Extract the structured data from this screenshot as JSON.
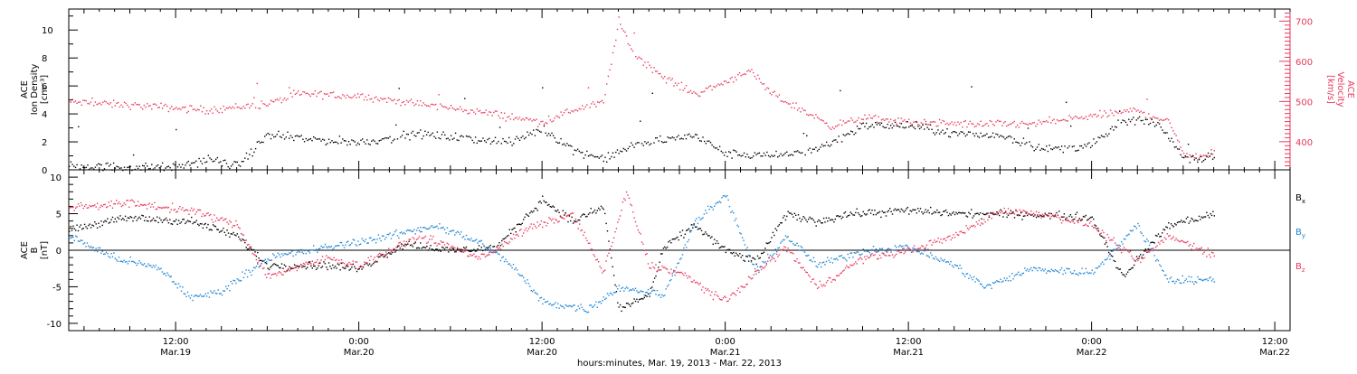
{
  "colors": {
    "black": "#000000",
    "red": "#e8385c",
    "blue": "#1f86d6"
  },
  "xaxis": {
    "title": "hours:minutes, Mar. 19, 2013 - Mar. 22, 2013",
    "range": [
      "2013-03-19T05:00",
      "2013-03-22T13:00"
    ],
    "data_end": "2013-03-22T08:00",
    "ticks": [
      {
        "time": "12:00",
        "date": "Mar.19",
        "at": "2013-03-19T12:00"
      },
      {
        "time": "0:00",
        "date": "Mar.20",
        "at": "2013-03-20T00:00"
      },
      {
        "time": "12:00",
        "date": "Mar.20",
        "at": "2013-03-20T12:00"
      },
      {
        "time": "0:00",
        "date": "Mar.21",
        "at": "2013-03-21T00:00"
      },
      {
        "time": "12:00",
        "date": "Mar.21",
        "at": "2013-03-21T12:00"
      },
      {
        "time": "0:00",
        "date": "Mar.22",
        "at": "2013-03-22T00:00"
      },
      {
        "time": "12:00",
        "date": "Mar.22",
        "at": "2013-03-22T12:00"
      }
    ]
  },
  "chart_data": [
    {
      "type": "scatter",
      "panel": "top",
      "ylabel_left": [
        "ACE",
        "Ion Density",
        "[cm⁻³]"
      ],
      "ylim_left": [
        0,
        11.5
      ],
      "yticks_left": [
        "0",
        "2",
        "4",
        "6",
        "8",
        "10"
      ],
      "ylabel_right": [
        "ACE",
        "Velocity",
        "[km/s]"
      ],
      "ylim_right": [
        330,
        730
      ],
      "yticks_right": [
        "400",
        "500",
        "600",
        "700"
      ],
      "series": [
        {
          "color": "#000000",
          "axis": "left",
          "points": [
            [
              "2013-03-19T05:00",
              0.3
            ],
            [
              "2013-03-19T12:00",
              0.2
            ],
            [
              "2013-03-19T14:00",
              0.8
            ],
            [
              "2013-03-19T16:00",
              0.3
            ],
            [
              "2013-03-19T18:00",
              2.5
            ],
            [
              "2013-03-19T21:00",
              2.2
            ],
            [
              "2013-03-20T00:00",
              2.0
            ],
            [
              "2013-03-20T04:00",
              2.6
            ],
            [
              "2013-03-20T07:00",
              2.3
            ],
            [
              "2013-03-20T10:00",
              2.0
            ],
            [
              "2013-03-20T12:00",
              3.0
            ],
            [
              "2013-03-20T14:00",
              1.5
            ],
            [
              "2013-03-20T16:00",
              0.8
            ],
            [
              "2013-03-20T18:00",
              1.8
            ],
            [
              "2013-03-20T20:00",
              2.2
            ],
            [
              "2013-03-20T22:00",
              2.5
            ],
            [
              "2013-03-21T00:00",
              1.2
            ],
            [
              "2013-03-21T03:00",
              1.0
            ],
            [
              "2013-03-21T06:00",
              1.5
            ],
            [
              "2013-03-21T09:00",
              3.2
            ],
            [
              "2013-03-21T12:00",
              3.2
            ],
            [
              "2013-03-21T15:00",
              2.6
            ],
            [
              "2013-03-21T18:00",
              2.5
            ],
            [
              "2013-03-21T21:00",
              1.5
            ],
            [
              "2013-03-22T00:00",
              1.8
            ],
            [
              "2013-03-22T02:00",
              3.5
            ],
            [
              "2013-03-22T04:00",
              3.5
            ],
            [
              "2013-03-22T05:00",
              2.5
            ],
            [
              "2013-03-22T06:00",
              0.9
            ],
            [
              "2013-03-22T08:00",
              0.9
            ]
          ]
        },
        {
          "color": "#e8385c",
          "axis": "right",
          "points": [
            [
              "2013-03-19T05:00",
              500
            ],
            [
              "2013-03-19T10:00",
              490
            ],
            [
              "2013-03-19T14:00",
              480
            ],
            [
              "2013-03-19T18:00",
              495
            ],
            [
              "2013-03-19T20:00",
              520
            ],
            [
              "2013-03-20T00:00",
              515
            ],
            [
              "2013-03-20T04:00",
              495
            ],
            [
              "2013-03-20T08:00",
              475
            ],
            [
              "2013-03-20T12:00",
              450
            ],
            [
              "2013-03-20T14:00",
              480
            ],
            [
              "2013-03-20T16:00",
              500
            ],
            [
              "2013-03-20T17:00",
              700
            ],
            [
              "2013-03-20T18:00",
              620
            ],
            [
              "2013-03-20T20:00",
              560
            ],
            [
              "2013-03-20T22:00",
              520
            ],
            [
              "2013-03-21T00:00",
              550
            ],
            [
              "2013-03-21T01:30",
              580
            ],
            [
              "2013-03-21T03:00",
              520
            ],
            [
              "2013-03-21T05:00",
              480
            ],
            [
              "2013-03-21T07:00",
              440
            ],
            [
              "2013-03-21T09:00",
              460
            ],
            [
              "2013-03-21T12:00",
              450
            ],
            [
              "2013-03-21T16:00",
              445
            ],
            [
              "2013-03-21T20:00",
              445
            ],
            [
              "2013-03-22T00:00",
              465
            ],
            [
              "2013-03-22T03:00",
              480
            ],
            [
              "2013-03-22T05:00",
              450
            ],
            [
              "2013-03-22T06:00",
              375
            ],
            [
              "2013-03-22T07:00",
              360
            ],
            [
              "2013-03-22T08:00",
              375
            ]
          ]
        }
      ]
    },
    {
      "type": "scatter",
      "panel": "bottom",
      "ylabel_left": [
        "ACE",
        "B",
        "[nT]"
      ],
      "ylim_left": [
        -11,
        11
      ],
      "yticks_left": [
        "-10",
        "-5",
        "0",
        "5",
        "10"
      ],
      "zero_line": true,
      "series": [
        {
          "name": "Bx",
          "color": "#000000",
          "points": [
            [
              "2013-03-19T05:00",
              3.0
            ],
            [
              "2013-03-19T09:00",
              4.5
            ],
            [
              "2013-03-19T13:00",
              4.0
            ],
            [
              "2013-03-19T16:00",
              2.0
            ],
            [
              "2013-03-19T18:00",
              -2.0
            ],
            [
              "2013-03-19T22:00",
              -2.0
            ],
            [
              "2013-03-20T00:00",
              -2.5
            ],
            [
              "2013-03-20T03:00",
              1.0
            ],
            [
              "2013-03-20T06:00",
              0.0
            ],
            [
              "2013-03-20T09:00",
              0.5
            ],
            [
              "2013-03-20T12:00",
              7.0
            ],
            [
              "2013-03-20T14:00",
              4.0
            ],
            [
              "2013-03-20T16:00",
              6.0
            ],
            [
              "2013-03-20T17:00",
              -8.0
            ],
            [
              "2013-03-20T19:00",
              -6.0
            ],
            [
              "2013-03-20T20:00",
              0.5
            ],
            [
              "2013-03-20T22:00",
              3.5
            ],
            [
              "2013-03-21T00:00",
              0.0
            ],
            [
              "2013-03-21T02:00",
              -1.5
            ],
            [
              "2013-03-21T04:00",
              5.0
            ],
            [
              "2013-03-21T06:00",
              4.0
            ],
            [
              "2013-03-21T08:00",
              5.0
            ],
            [
              "2013-03-21T12:00",
              5.5
            ],
            [
              "2013-03-21T16:00",
              5.0
            ],
            [
              "2013-03-21T20:00",
              5.0
            ],
            [
              "2013-03-22T00:00",
              4.5
            ],
            [
              "2013-03-22T02:00",
              -3.5
            ],
            [
              "2013-03-22T05:00",
              3.5
            ],
            [
              "2013-03-22T08:00",
              5.0
            ]
          ]
        },
        {
          "name": "By",
          "color": "#1f86d6",
          "points": [
            [
              "2013-03-19T05:00",
              2.0
            ],
            [
              "2013-03-19T08:00",
              -1.0
            ],
            [
              "2013-03-19T11:00",
              -2.5
            ],
            [
              "2013-03-19T13:00",
              -6.5
            ],
            [
              "2013-03-19T15:00",
              -5.5
            ],
            [
              "2013-03-19T18:00",
              -1.0
            ],
            [
              "2013-03-19T22:00",
              0.5
            ],
            [
              "2013-03-20T02:00",
              2.0
            ],
            [
              "2013-03-20T05:00",
              3.5
            ],
            [
              "2013-03-20T08:00",
              1.0
            ],
            [
              "2013-03-20T10:00",
              -2.0
            ],
            [
              "2013-03-20T12:00",
              -7.0
            ],
            [
              "2013-03-20T15:00",
              -8.0
            ],
            [
              "2013-03-20T17:00",
              -5.0
            ],
            [
              "2013-03-20T20:00",
              -6.0
            ],
            [
              "2013-03-20T22:00",
              4.0
            ],
            [
              "2013-03-21T00:00",
              7.5
            ],
            [
              "2013-03-21T02:00",
              -3.0
            ],
            [
              "2013-03-21T04:00",
              2.0
            ],
            [
              "2013-03-21T06:00",
              -2.0
            ],
            [
              "2013-03-21T09:00",
              0.0
            ],
            [
              "2013-03-21T12:00",
              0.5
            ],
            [
              "2013-03-21T15:00",
              -2.0
            ],
            [
              "2013-03-21T17:00",
              -5.0
            ],
            [
              "2013-03-21T20:00",
              -2.5
            ],
            [
              "2013-03-22T00:00",
              -3.0
            ],
            [
              "2013-03-22T03:00",
              3.5
            ],
            [
              "2013-03-22T05:00",
              -4.0
            ],
            [
              "2013-03-22T08:00",
              -4.0
            ]
          ]
        },
        {
          "name": "Bz",
          "color": "#e8385c",
          "points": [
            [
              "2013-03-19T05:00",
              6.0
            ],
            [
              "2013-03-19T09:00",
              6.5
            ],
            [
              "2013-03-19T13:00",
              5.5
            ],
            [
              "2013-03-19T16:00",
              3.5
            ],
            [
              "2013-03-19T18:00",
              -3.5
            ],
            [
              "2013-03-19T22:00",
              -1.0
            ],
            [
              "2013-03-20T00:00",
              -2.0
            ],
            [
              "2013-03-20T04:00",
              2.0
            ],
            [
              "2013-03-20T08:00",
              -1.0
            ],
            [
              "2013-03-20T11:00",
              3.0
            ],
            [
              "2013-03-20T14:00",
              5.0
            ],
            [
              "2013-03-20T16:00",
              -3.0
            ],
            [
              "2013-03-20T17:30",
              8.0
            ],
            [
              "2013-03-20T19:00",
              -2.0
            ],
            [
              "2013-03-20T21:00",
              -3.0
            ],
            [
              "2013-03-21T00:00",
              -7.0
            ],
            [
              "2013-03-21T02:00",
              -3.0
            ],
            [
              "2013-03-21T04:00",
              0.5
            ],
            [
              "2013-03-21T06:00",
              -5.0
            ],
            [
              "2013-03-21T09:00",
              -1.0
            ],
            [
              "2013-03-21T12:00",
              0.0
            ],
            [
              "2013-03-21T15:00",
              2.0
            ],
            [
              "2013-03-21T18:00",
              5.5
            ],
            [
              "2013-03-21T21:00",
              5.0
            ],
            [
              "2013-03-22T00:00",
              3.5
            ],
            [
              "2013-03-22T03:00",
              -1.5
            ],
            [
              "2013-03-22T05:00",
              2.0
            ],
            [
              "2013-03-22T08:00",
              -0.5
            ]
          ]
        }
      ],
      "legend": [
        {
          "base": "B",
          "sub": "x",
          "color": "#000000"
        },
        {
          "base": "B",
          "sub": "y",
          "color": "#1f86d6"
        },
        {
          "base": "B",
          "sub": "z",
          "color": "#e8385c"
        }
      ]
    }
  ]
}
